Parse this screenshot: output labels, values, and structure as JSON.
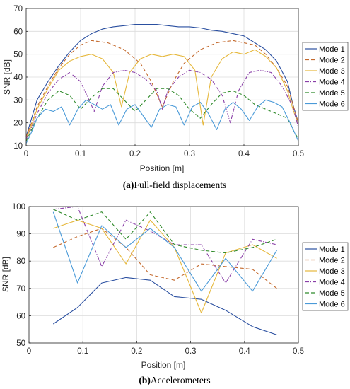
{
  "chart_data": [
    {
      "type": "line",
      "caption_tag": "(a)",
      "caption_text": "Full-field displacements",
      "xlabel": "Position [m]",
      "ylabel": "SNR [dB]",
      "xlim": [
        0,
        0.5
      ],
      "ylim": [
        10,
        70
      ],
      "xticks": [
        "0",
        "0.1",
        "0.2",
        "0.3",
        "0.4",
        "0.5"
      ],
      "yticks": [
        "10",
        "20",
        "30",
        "40",
        "50",
        "60",
        "70"
      ],
      "grid": true,
      "legend": "right",
      "series": [
        {
          "name": "Mode 1",
          "color": "#2a4fa0",
          "style": "solid",
          "x": [
            0,
            0.01,
            0.02,
            0.04,
            0.06,
            0.08,
            0.1,
            0.12,
            0.14,
            0.16,
            0.18,
            0.2,
            0.22,
            0.24,
            0.26,
            0.28,
            0.3,
            0.32,
            0.34,
            0.36,
            0.38,
            0.4,
            0.42,
            0.44,
            0.46,
            0.48,
            0.49,
            0.5
          ],
          "y": [
            14,
            22,
            30,
            38,
            45,
            51,
            56,
            59,
            61,
            62,
            62.5,
            63,
            63,
            63,
            62.5,
            62,
            62,
            61.5,
            60.5,
            60,
            59,
            58,
            55,
            52,
            47,
            38,
            28,
            20
          ]
        },
        {
          "name": "Mode 2",
          "color": "#c46a2e",
          "style": "dashed",
          "x": [
            0,
            0.01,
            0.02,
            0.04,
            0.06,
            0.08,
            0.1,
            0.12,
            0.15,
            0.18,
            0.21,
            0.23,
            0.25,
            0.27,
            0.29,
            0.32,
            0.35,
            0.38,
            0.4,
            0.42,
            0.44,
            0.46,
            0.48,
            0.49,
            0.5
          ],
          "y": [
            14,
            20,
            27,
            36,
            44,
            50,
            54,
            56,
            55,
            52,
            46,
            38,
            27,
            38,
            46,
            52,
            55,
            56,
            55,
            54,
            50,
            44,
            36,
            28,
            20
          ]
        },
        {
          "name": "Mode 3",
          "color": "#e6b83c",
          "style": "solid",
          "x": [
            0,
            0.01,
            0.02,
            0.04,
            0.06,
            0.08,
            0.1,
            0.12,
            0.14,
            0.16,
            0.175,
            0.19,
            0.21,
            0.23,
            0.25,
            0.27,
            0.29,
            0.31,
            0.325,
            0.34,
            0.36,
            0.38,
            0.4,
            0.42,
            0.44,
            0.46,
            0.48,
            0.49,
            0.5
          ],
          "y": [
            13,
            19,
            26,
            35,
            43,
            47,
            49,
            50,
            48,
            42,
            27,
            42,
            48,
            50,
            49,
            50,
            49,
            43,
            19,
            40,
            48,
            51,
            50,
            52,
            49,
            44,
            34,
            26,
            19
          ]
        },
        {
          "name": "Mode 4",
          "color": "#8a3fa8",
          "style": "dashdot",
          "x": [
            0,
            0.01,
            0.02,
            0.04,
            0.06,
            0.08,
            0.1,
            0.125,
            0.14,
            0.16,
            0.18,
            0.2,
            0.22,
            0.24,
            0.25,
            0.26,
            0.28,
            0.3,
            0.32,
            0.34,
            0.36,
            0.375,
            0.39,
            0.41,
            0.43,
            0.45,
            0.47,
            0.49,
            0.5
          ],
          "y": [
            13,
            18,
            24,
            33,
            39,
            42,
            38,
            25,
            36,
            42,
            43,
            42,
            39,
            34,
            26,
            34,
            40,
            43,
            42,
            39,
            32,
            20,
            34,
            42,
            43,
            42,
            36,
            27,
            18
          ]
        },
        {
          "name": "Mode 5",
          "color": "#2f8a2a",
          "style": "dashed",
          "x": [
            0,
            0.01,
            0.02,
            0.04,
            0.06,
            0.08,
            0.1,
            0.12,
            0.14,
            0.16,
            0.18,
            0.2,
            0.22,
            0.24,
            0.26,
            0.28,
            0.3,
            0.32,
            0.34,
            0.36,
            0.38,
            0.4,
            0.42,
            0.44,
            0.46,
            0.48,
            0.49,
            0.5
          ],
          "y": [
            12,
            17,
            22,
            30,
            34,
            32,
            26,
            31,
            35,
            35,
            30,
            25,
            30,
            35,
            35,
            32,
            26,
            22,
            28,
            33,
            34,
            32,
            28,
            26,
            24,
            22,
            17,
            13
          ]
        },
        {
          "name": "Mode 6",
          "color": "#4a9ad8",
          "style": "solid",
          "x": [
            0,
            0.01,
            0.02,
            0.035,
            0.05,
            0.065,
            0.08,
            0.095,
            0.11,
            0.125,
            0.14,
            0.155,
            0.17,
            0.185,
            0.2,
            0.215,
            0.23,
            0.245,
            0.26,
            0.275,
            0.29,
            0.305,
            0.32,
            0.335,
            0.35,
            0.365,
            0.38,
            0.395,
            0.41,
            0.425,
            0.44,
            0.455,
            0.47,
            0.485,
            0.5
          ],
          "y": [
            11,
            16,
            22,
            26,
            25,
            27,
            19,
            26,
            30,
            28,
            26,
            28,
            19,
            26,
            28,
            23,
            18,
            26,
            28,
            27,
            19,
            27,
            29,
            24,
            17,
            26,
            29,
            26,
            21,
            27,
            30,
            29,
            27,
            20,
            12
          ]
        }
      ]
    },
    {
      "type": "line",
      "caption_tag": "(b)",
      "caption_text": "Accelerometers",
      "xlabel": "Position [m]",
      "ylabel": "SNR [dB]",
      "xlim": [
        0,
        0.5
      ],
      "ylim": [
        50,
        100
      ],
      "xticks": [
        "0",
        "0.1",
        "0.2",
        "0.3",
        "0.4",
        "0.5"
      ],
      "yticks": [
        "50",
        "60",
        "70",
        "80",
        "90",
        "100"
      ],
      "grid": true,
      "legend": "right",
      "x": [
        0.045,
        0.09,
        0.135,
        0.18,
        0.225,
        0.27,
        0.32,
        0.365,
        0.415,
        0.46
      ],
      "series": [
        {
          "name": "Mode 1",
          "color": "#2a4fa0",
          "style": "solid",
          "y": [
            57,
            63,
            72,
            74,
            73,
            67,
            66,
            62,
            56,
            53
          ]
        },
        {
          "name": "Mode 2",
          "color": "#c46a2e",
          "style": "dashed",
          "y": [
            85,
            89,
            92,
            85,
            75,
            73,
            79,
            78,
            77,
            70
          ]
        },
        {
          "name": "Mode 3",
          "color": "#e6b83c",
          "style": "solid",
          "y": [
            92,
            95,
            92,
            79,
            95,
            85,
            61,
            83,
            86,
            81
          ]
        },
        {
          "name": "Mode 4",
          "color": "#8a3fa8",
          "style": "dashdot",
          "y": [
            99,
            100,
            78,
            95,
            91,
            86,
            86,
            72,
            88,
            86
          ]
        },
        {
          "name": "Mode 5",
          "color": "#2f8a2a",
          "style": "dashed",
          "y": [
            99,
            95,
            98,
            88,
            98,
            86,
            84,
            83,
            85,
            88
          ]
        },
        {
          "name": "Mode 6",
          "color": "#4a9ad8",
          "style": "solid",
          "y": [
            98,
            72,
            93,
            85,
            92,
            85,
            69,
            81,
            69,
            84
          ]
        }
      ]
    }
  ]
}
